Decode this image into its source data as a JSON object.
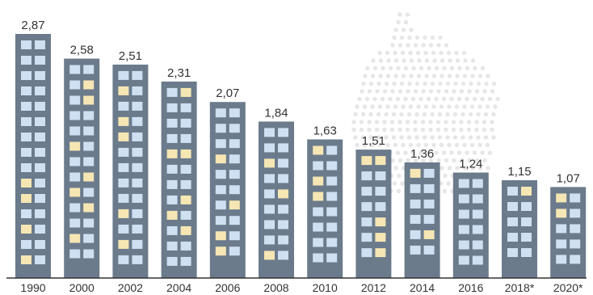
{
  "chart_data": {
    "type": "bar",
    "title": "",
    "xlabel": "",
    "ylabel": "",
    "categories": [
      "1990",
      "2000",
      "2002",
      "2004",
      "2006",
      "2008",
      "2010",
      "2012",
      "2014",
      "2016",
      "2018*",
      "2020*"
    ],
    "values": [
      2.87,
      2.58,
      2.51,
      2.31,
      2.07,
      1.84,
      1.63,
      1.51,
      1.36,
      1.24,
      1.15,
      1.07
    ],
    "value_labels": [
      "2,87",
      "2,58",
      "2,51",
      "2,31",
      "2,07",
      "1,84",
      "1,63",
      "1,51",
      "1,36",
      "1,24",
      "1,15",
      "1,07"
    ],
    "ylim": [
      0,
      2.87
    ],
    "grid": false,
    "legend": "none",
    "bar_style": "building",
    "background_map": "germany-dot-map",
    "colors": {
      "building": "#6b7b8c",
      "window": "#cfe0f3",
      "window_lit": "#f5e6b4",
      "map_dot": "#e6e6e6",
      "text": "#333333",
      "axis": "#333333"
    }
  }
}
